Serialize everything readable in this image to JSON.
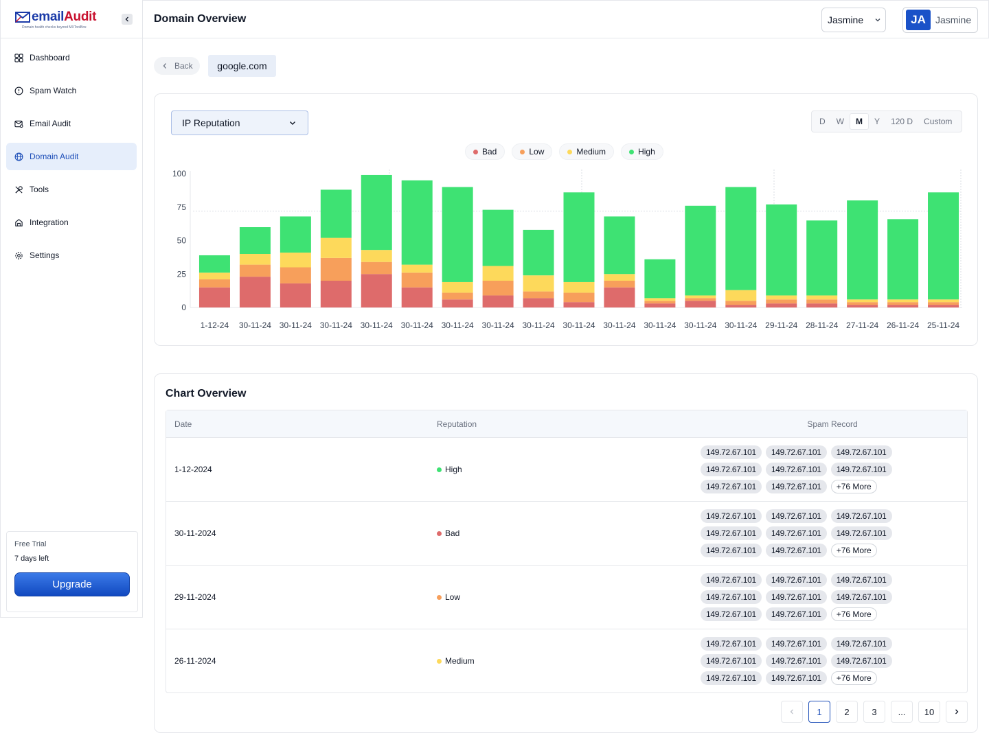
{
  "brand": {
    "logo_email": "email",
    "logo_audit": "Audit",
    "tagline": "Domain health checks beyond MXToolBox"
  },
  "sidebar": {
    "items": [
      {
        "label": "Dashboard",
        "icon": "dashboard-icon"
      },
      {
        "label": "Spam Watch",
        "icon": "spam-watch-icon"
      },
      {
        "label": "Email Audit",
        "icon": "email-audit-icon"
      },
      {
        "label": "Domain Audit",
        "icon": "globe-icon",
        "active": true
      },
      {
        "label": "Tools",
        "icon": "tools-icon"
      },
      {
        "label": "Integration",
        "icon": "integration-icon"
      },
      {
        "label": "Settings",
        "icon": "gear-icon"
      }
    ],
    "trial": {
      "title": "Free Trial",
      "days_left": "7 days left",
      "upgrade_label": "Upgrade"
    }
  },
  "header": {
    "title": "Domain Overview",
    "user_select": "Jasmine",
    "avatar_initials": "JA",
    "profile_name": "Jasmine"
  },
  "breadcrumb": {
    "back_label": "Back",
    "domain": "google.com"
  },
  "chart_controls": {
    "metric": "IP Reputation",
    "ranges": [
      "D",
      "W",
      "M",
      "Y",
      "120 D",
      "Custom"
    ],
    "active_range": "M"
  },
  "colors": {
    "bad": "#de6b6b",
    "low": "#f79f5b",
    "medium": "#fdd95b",
    "high": "#3ee273",
    "accent": "#1e4fb8"
  },
  "chart_data": {
    "type": "bar",
    "stacked": true,
    "categories": [
      "1-12-24",
      "30-11-24",
      "30-11-24",
      "30-11-24",
      "30-11-24",
      "30-11-24",
      "30-11-24",
      "30-11-24",
      "30-11-24",
      "30-11-24",
      "30-11-24",
      "30-11-24",
      "30-11-24",
      "30-11-24",
      "29-11-24",
      "28-11-24",
      "27-11-24",
      "26-11-24",
      "25-11-24"
    ],
    "series": [
      {
        "name": "Bad",
        "values": [
          15,
          23,
          18,
          20,
          25,
          15,
          6,
          9,
          7,
          4,
          15,
          3,
          5,
          2,
          3,
          3,
          2,
          2,
          2
        ]
      },
      {
        "name": "Low",
        "values": [
          6,
          9,
          12,
          17,
          9,
          11,
          5,
          11,
          5,
          7,
          5,
          2,
          2,
          3,
          3,
          3,
          2,
          2,
          2
        ]
      },
      {
        "name": "Medium",
        "values": [
          5,
          8,
          11,
          15,
          9,
          6,
          8,
          11,
          12,
          8,
          5,
          2,
          2,
          8,
          3,
          3,
          2,
          2,
          2
        ]
      },
      {
        "name": "High",
        "values": [
          13,
          20,
          27,
          36,
          56,
          63,
          71,
          42,
          34,
          67,
          43,
          29,
          67,
          77,
          68,
          56,
          74,
          60,
          80
        ]
      }
    ],
    "ylim": [
      0,
      100
    ],
    "yticks": [
      0,
      25,
      50,
      75,
      100
    ],
    "legend_position": "top-center",
    "grid": true
  },
  "overview": {
    "title": "Chart Overview",
    "columns": [
      "Date",
      "Reputation",
      "Spam Record"
    ],
    "rows": [
      {
        "date": "1-12-2024",
        "reputation": "High",
        "color": "#3ee273",
        "ips": [
          "149.72.67.101",
          "149.72.67.101",
          "149.72.67.101",
          "149.72.67.101",
          "149.72.67.101",
          "149.72.67.101",
          "149.72.67.101",
          "149.72.67.101"
        ],
        "more": "+76 More"
      },
      {
        "date": "30-11-2024",
        "reputation": "Bad",
        "color": "#de6b6b",
        "ips": [
          "149.72.67.101",
          "149.72.67.101",
          "149.72.67.101",
          "149.72.67.101",
          "149.72.67.101",
          "149.72.67.101",
          "149.72.67.101",
          "149.72.67.101"
        ],
        "more": "+76 More"
      },
      {
        "date": "29-11-2024",
        "reputation": "Low",
        "color": "#f79f5b",
        "ips": [
          "149.72.67.101",
          "149.72.67.101",
          "149.72.67.101",
          "149.72.67.101",
          "149.72.67.101",
          "149.72.67.101",
          "149.72.67.101",
          "149.72.67.101"
        ],
        "more": "+76 More"
      },
      {
        "date": "26-11-2024",
        "reputation": "Medium",
        "color": "#fdd95b",
        "ips": [
          "149.72.67.101",
          "149.72.67.101",
          "149.72.67.101",
          "149.72.67.101",
          "149.72.67.101",
          "149.72.67.101",
          "149.72.67.101",
          "149.72.67.101"
        ],
        "more": "+76 More"
      }
    ]
  },
  "pagination": {
    "pages": [
      "1",
      "2",
      "3",
      "...",
      "10"
    ],
    "current": "1"
  }
}
